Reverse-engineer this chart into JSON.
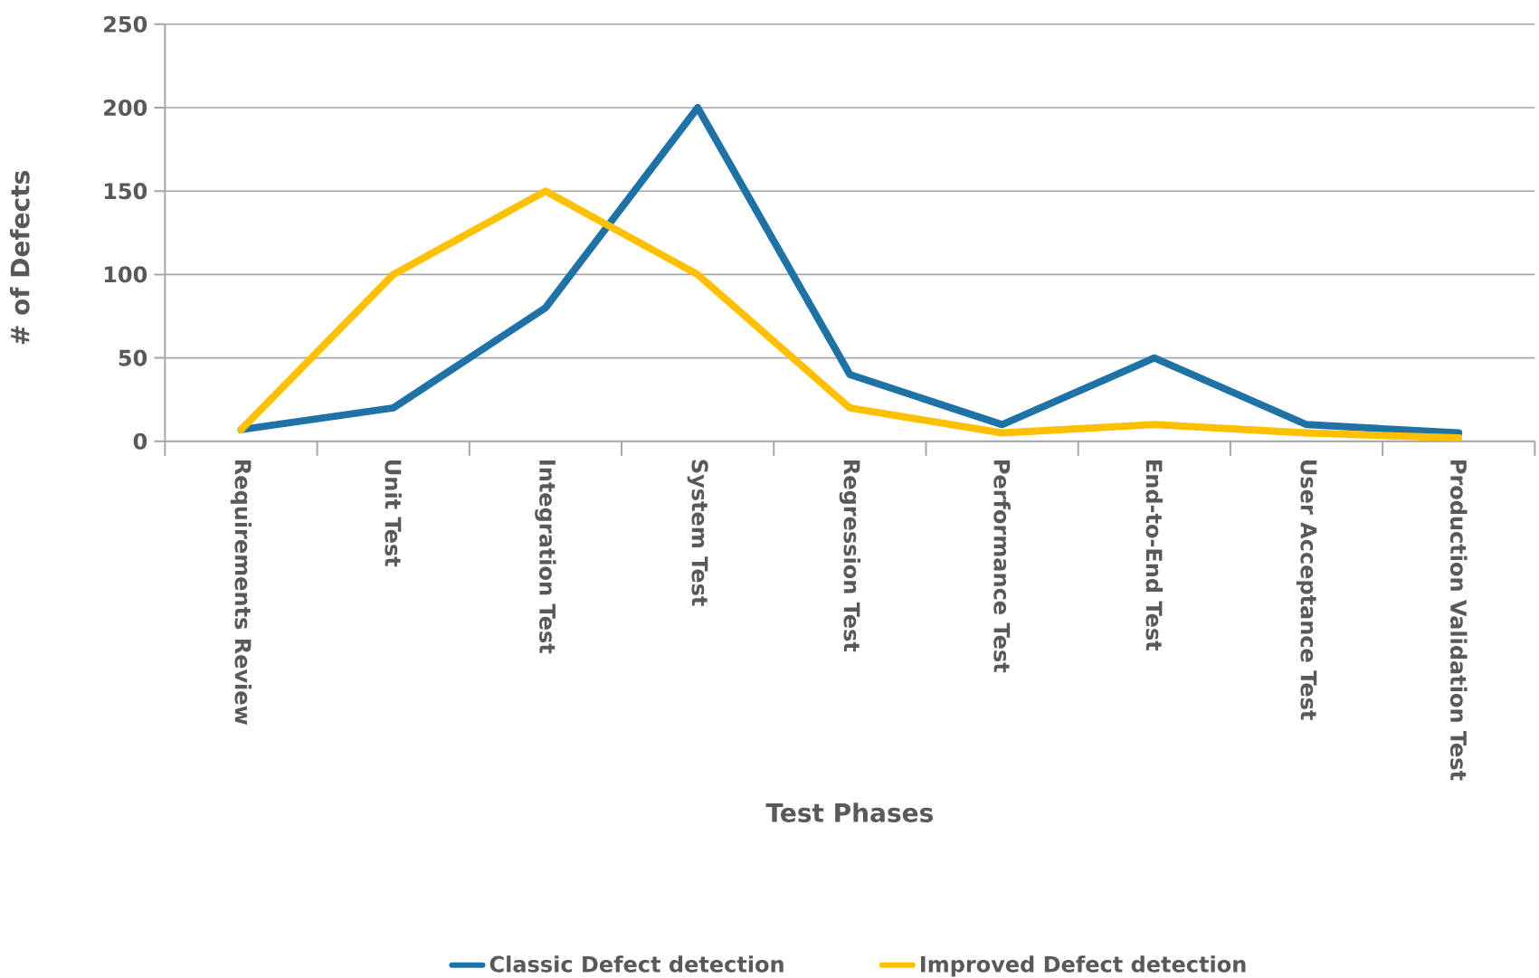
{
  "chart_data": {
    "type": "line",
    "xlabel": "Test Phases",
    "ylabel": "#  of  Defects",
    "categories": [
      "Requirements Review",
      "Unit Test",
      "Integration Test",
      "System Test",
      "Regression Test",
      "Performance Test",
      "End-to-End Test",
      "User Acceptance Test",
      "Production Validation Test"
    ],
    "series": [
      {
        "name": "Classic Defect detection",
        "color": "#1f72a6",
        "values": [
          7,
          20,
          80,
          200,
          40,
          10,
          50,
          10,
          5
        ]
      },
      {
        "name": "Improved Defect detection",
        "color": "#ffc000",
        "values": [
          7,
          100,
          150,
          100,
          20,
          5,
          10,
          5,
          2
        ]
      }
    ],
    "ylim": [
      0,
      250
    ],
    "yticks": [
      0,
      50,
      100,
      150,
      200,
      250
    ],
    "grid": "y",
    "legend": "bottom",
    "marker": "none",
    "line_style": "solid"
  }
}
